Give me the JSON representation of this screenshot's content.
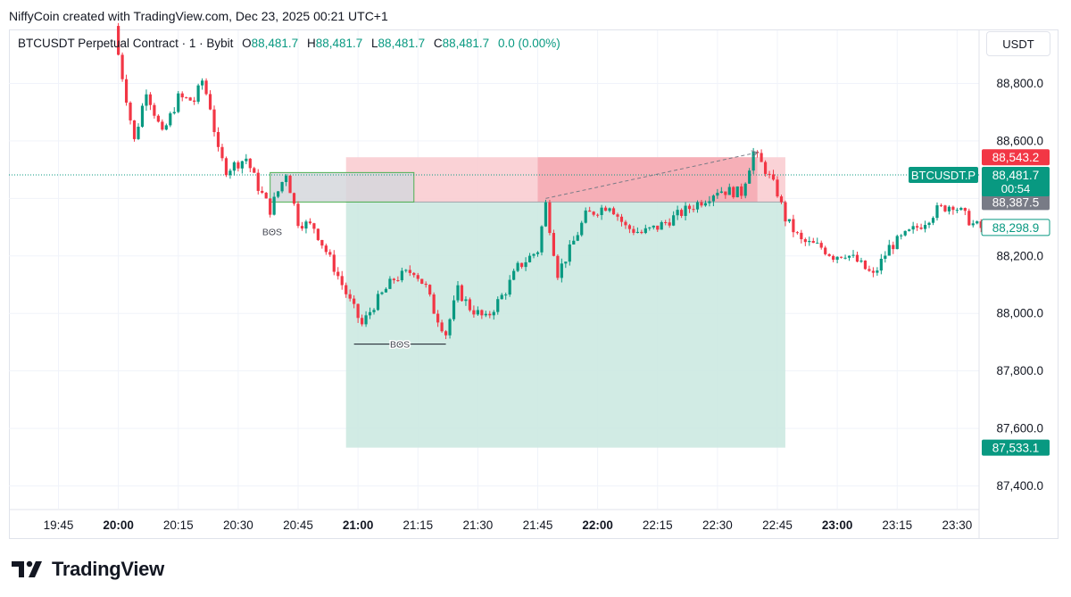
{
  "header": {
    "credit": "NiffyCoin created with TradingView.com, Dec 23, 2025 00:21 UTC+1"
  },
  "legend": {
    "symbol": "BTCUSDT Perpetual Contract · 1 · Bybit",
    "o_label": "O",
    "o_value": "88,481.7",
    "h_label": "H",
    "h_value": "88,481.7",
    "l_label": "L",
    "l_value": "88,481.7",
    "c_label": "C",
    "c_value": "88,481.7",
    "change": "0.0 (0.00%)"
  },
  "price_axis": {
    "unit": "USDT"
  },
  "brand": {
    "name": "TradingView",
    "logo_icon": "tradingview-logo-icon"
  },
  "colors": {
    "up": "#089981",
    "down": "#f23645",
    "grid": "#f0f3fa",
    "profit_zone": "#cce9e1",
    "loss_zone": "#f9cdd2",
    "loss_zone_active": "#f5a9b1",
    "order_block": "#d5d7dc",
    "order_block_border": "#4caf50",
    "current_price": "#089981"
  },
  "chart_data": {
    "type": "candlestick",
    "title": "BTCUSDT Perpetual Contract · 1 · Bybit",
    "x_unit": "time (UTC+1)",
    "y_unit": "USDT",
    "ylim": [
      87340,
      88960
    ],
    "xlim": [
      "19:37",
      "23:40"
    ],
    "grid": true,
    "y_ticks": [
      "87,400.0",
      "87,600.0",
      "87,800.0",
      "88,000.0",
      "88,200.0",
      "88,400.0",
      "88,600.0",
      "88,800.0"
    ],
    "y_tick_values": [
      87400,
      87600,
      87800,
      88000,
      88200,
      88400,
      88600,
      88800
    ],
    "x_ticks": [
      {
        "label": "19:45",
        "bold": false
      },
      {
        "label": "20:00",
        "bold": true
      },
      {
        "label": "20:15",
        "bold": false
      },
      {
        "label": "20:30",
        "bold": false
      },
      {
        "label": "20:45",
        "bold": false
      },
      {
        "label": "21:00",
        "bold": true
      },
      {
        "label": "21:15",
        "bold": false
      },
      {
        "label": "21:30",
        "bold": false
      },
      {
        "label": "21:45",
        "bold": false
      },
      {
        "label": "22:00",
        "bold": true
      },
      {
        "label": "22:15",
        "bold": false
      },
      {
        "label": "22:30",
        "bold": false
      },
      {
        "label": "22:45",
        "bold": false
      },
      {
        "label": "23:00",
        "bold": true
      },
      {
        "label": "23:15",
        "bold": false
      },
      {
        "label": "23:30",
        "bold": false
      }
    ],
    "anchors": [
      [
        "20:00",
        89030
      ],
      [
        "20:01",
        88900
      ],
      [
        "20:05",
        88600
      ],
      [
        "20:08",
        88780
      ],
      [
        "20:12",
        88620
      ],
      [
        "20:16",
        88750
      ],
      [
        "20:20",
        88740
      ],
      [
        "20:22",
        88810
      ],
      [
        "20:24",
        88720
      ],
      [
        "20:26",
        88560
      ],
      [
        "20:28",
        88500
      ],
      [
        "20:33",
        88540
      ],
      [
        "20:36",
        88440
      ],
      [
        "20:39",
        88360
      ],
      [
        "20:43",
        88490
      ],
      [
        "20:46",
        88320
      ],
      [
        "20:50",
        88300
      ],
      [
        "20:55",
        88160
      ],
      [
        "20:59",
        88040
      ],
      [
        "21:02",
        87960
      ],
      [
        "21:05",
        88030
      ],
      [
        "21:10",
        88120
      ],
      [
        "21:15",
        88150
      ],
      [
        "21:18",
        88090
      ],
      [
        "21:20",
        88010
      ],
      [
        "21:23",
        87930
      ],
      [
        "21:26",
        88080
      ],
      [
        "21:29",
        88020
      ],
      [
        "21:33",
        87980
      ],
      [
        "21:38",
        88080
      ],
      [
        "21:41",
        88160
      ],
      [
        "21:46",
        88220
      ],
      [
        "21:48",
        88380
      ],
      [
        "21:51",
        88140
      ],
      [
        "21:54",
        88220
      ],
      [
        "21:58",
        88340
      ],
      [
        "22:04",
        88380
      ],
      [
        "22:08",
        88300
      ],
      [
        "22:12",
        88280
      ],
      [
        "22:16",
        88300
      ],
      [
        "22:22",
        88350
      ],
      [
        "22:28",
        88400
      ],
      [
        "22:31",
        88430
      ],
      [
        "22:37",
        88420
      ],
      [
        "22:40",
        88560
      ],
      [
        "22:43",
        88500
      ],
      [
        "22:46",
        88420
      ],
      [
        "22:48",
        88330
      ],
      [
        "22:52",
        88250
      ],
      [
        "22:57",
        88230
      ],
      [
        "23:00",
        88200
      ],
      [
        "23:03",
        88210
      ],
      [
        "23:06",
        88180
      ],
      [
        "23:10",
        88130
      ],
      [
        "23:14",
        88230
      ],
      [
        "23:18",
        88270
      ],
      [
        "23:22",
        88310
      ],
      [
        "23:26",
        88360
      ],
      [
        "23:30",
        88380
      ],
      [
        "23:35",
        88310
      ],
      [
        "23:38",
        88290
      ]
    ],
    "last_candle": {
      "time": "23:38",
      "open": 88481.7,
      "high": 88481.7,
      "low": 88481.7,
      "close": 88481.7
    },
    "position_tool": {
      "entry": 88387.5,
      "stop": 88543.2,
      "target": 87533.1,
      "start": "20:57",
      "end": "22:47",
      "triggered": "21:45",
      "closed": "22:40"
    },
    "order_block": {
      "top": 88490,
      "bottom": 88387.5,
      "start": "20:38",
      "end": "21:14"
    },
    "bos_markers": [
      {
        "label": "BOS",
        "price": 88285,
        "start": "20:38",
        "end": "20:39"
      },
      {
        "label": "BOS",
        "price": 87893,
        "start": "20:59",
        "end": "21:22"
      }
    ],
    "trend_line": {
      "from": [
        "21:47",
        88400
      ],
      "to": [
        "22:40",
        88560
      ]
    },
    "price_labels": [
      {
        "label": "88,543.2",
        "price": 88543.2,
        "kind": "stop"
      },
      {
        "label": "88,387.5",
        "price": 88387.5,
        "kind": "entry"
      },
      {
        "label": "88,298.9",
        "price": 88298.9,
        "kind": "outline"
      },
      {
        "label": "87,533.1",
        "price": 87533.1,
        "kind": "target"
      }
    ],
    "current_price": {
      "symbol": "BTCUSDT.P",
      "label": "88,481.7",
      "countdown": "00:54",
      "price": 88481.7
    }
  }
}
